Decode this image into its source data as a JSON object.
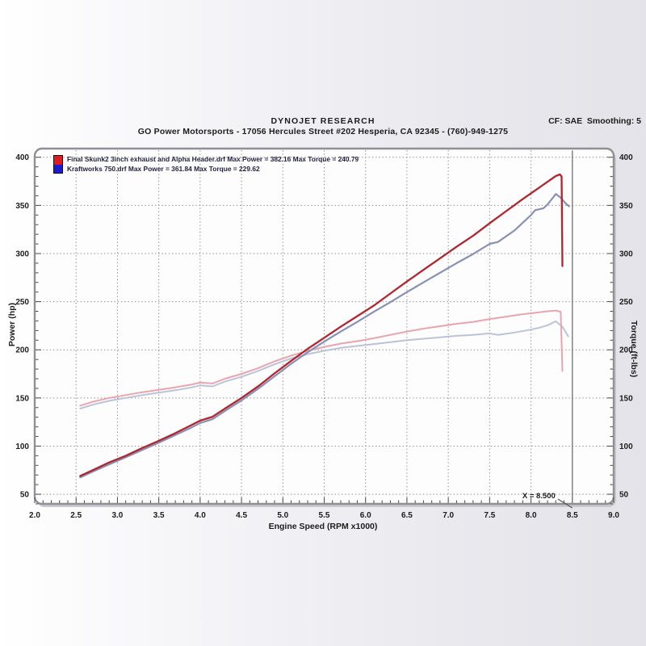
{
  "header": {
    "title": "DYNOJET RESEARCH",
    "subtitle": "GO Power Motorsports - 17056 Hercules Street #202 Hesperia, CA 92345 - (760)-949-1275",
    "cf_label": "CF: SAE  Smoothing: 5"
  },
  "legend": {
    "entries": [
      {
        "label": "Final Skunk2 3inch exhaust and Alpha Header.drf Max Power = 382.16 Max Torque = 240.79",
        "color": "#e01b20"
      },
      {
        "label": "Kraftworks 750.drf Max Power = 361.84 Max Torque = 229.62",
        "color": "#1b1bd0"
      }
    ]
  },
  "chart_data": {
    "type": "line",
    "xlabel": "Engine Speed (RPM x1000)",
    "ylabel_left": "Power (hp)",
    "ylabel_right": "Torque (ft-lbs)",
    "xlim": [
      2.0,
      9.0
    ],
    "ylim": [
      40,
      409
    ],
    "x_major_ticks": [
      2.0,
      2.5,
      3.0,
      3.5,
      4.0,
      4.5,
      5.0,
      5.5,
      6.0,
      6.5,
      7.0,
      7.5,
      8.0,
      8.5,
      9.0
    ],
    "y_major_ticks": [
      50,
      100,
      150,
      200,
      250,
      300,
      350,
      400
    ],
    "x_minor_step": 0.1,
    "y_minor_step": 10,
    "grid": "dotted",
    "legend_position": "top-left",
    "cursor": {
      "x": 8.5,
      "label": "X = 8.500"
    },
    "series": [
      {
        "key": "kraftworks-torque",
        "name": "Kraftworks 750.drf — Torque (ft-lbs)",
        "axis": "torque",
        "color": "#bcc3d8",
        "width": 2,
        "points": [
          [
            2.55,
            139
          ],
          [
            2.7,
            143
          ],
          [
            2.9,
            147
          ],
          [
            3.1,
            150
          ],
          [
            3.3,
            153
          ],
          [
            3.5,
            155.5
          ],
          [
            3.7,
            158
          ],
          [
            3.9,
            161
          ],
          [
            4.0,
            163
          ],
          [
            4.15,
            162
          ],
          [
            4.3,
            167
          ],
          [
            4.5,
            172
          ],
          [
            4.7,
            178
          ],
          [
            4.9,
            185
          ],
          [
            5.1,
            191
          ],
          [
            5.3,
            195.5
          ],
          [
            5.5,
            199
          ],
          [
            5.7,
            202
          ],
          [
            5.9,
            204
          ],
          [
            6.1,
            206
          ],
          [
            6.3,
            208
          ],
          [
            6.5,
            210
          ],
          [
            6.7,
            211.5
          ],
          [
            6.9,
            213
          ],
          [
            7.1,
            214.5
          ],
          [
            7.3,
            215.5
          ],
          [
            7.5,
            217
          ],
          [
            7.6,
            215.5
          ],
          [
            7.8,
            218
          ],
          [
            8.0,
            221
          ],
          [
            8.1,
            223
          ],
          [
            8.2,
            225.5
          ],
          [
            8.3,
            229.6
          ],
          [
            8.38,
            224
          ],
          [
            8.45,
            214
          ]
        ]
      },
      {
        "key": "skunk2-torque",
        "name": "Final Skunk2 3inch exhaust and Alpha Header.drf — Torque (ft-lbs)",
        "axis": "torque",
        "color": "#e8a5ad",
        "width": 2,
        "points": [
          [
            2.55,
            142
          ],
          [
            2.7,
            146
          ],
          [
            2.9,
            150
          ],
          [
            3.1,
            153
          ],
          [
            3.3,
            156
          ],
          [
            3.5,
            158.5
          ],
          [
            3.7,
            161
          ],
          [
            3.9,
            164
          ],
          [
            4.0,
            166
          ],
          [
            4.15,
            165
          ],
          [
            4.3,
            170
          ],
          [
            4.5,
            175
          ],
          [
            4.7,
            181
          ],
          [
            4.9,
            188
          ],
          [
            5.1,
            194
          ],
          [
            5.3,
            199
          ],
          [
            5.5,
            203
          ],
          [
            5.7,
            206.5
          ],
          [
            5.9,
            209
          ],
          [
            6.1,
            212
          ],
          [
            6.3,
            215.5
          ],
          [
            6.5,
            219
          ],
          [
            6.7,
            222
          ],
          [
            6.9,
            224.5
          ],
          [
            7.1,
            227
          ],
          [
            7.3,
            229
          ],
          [
            7.5,
            232
          ],
          [
            7.7,
            234.5
          ],
          [
            7.9,
            237
          ],
          [
            8.1,
            239
          ],
          [
            8.2,
            240
          ],
          [
            8.3,
            240.8
          ],
          [
            8.36,
            239.5
          ],
          [
            8.38,
            178
          ]
        ]
      },
      {
        "key": "kraftworks-power",
        "name": "Kraftworks 750.drf — Power (hp)",
        "axis": "power",
        "color": "#8791b6",
        "width": 2.2,
        "points": [
          [
            2.55,
            67.5
          ],
          [
            2.7,
            73.5
          ],
          [
            2.9,
            81
          ],
          [
            3.1,
            88.5
          ],
          [
            3.3,
            96
          ],
          [
            3.5,
            103.5
          ],
          [
            3.7,
            111.5
          ],
          [
            3.9,
            119.5
          ],
          [
            4.0,
            124
          ],
          [
            4.15,
            128
          ],
          [
            4.3,
            136.5
          ],
          [
            4.5,
            147.5
          ],
          [
            4.7,
            159.5
          ],
          [
            4.9,
            172.5
          ],
          [
            5.1,
            185.5
          ],
          [
            5.3,
            197.5
          ],
          [
            5.5,
            208.5
          ],
          [
            5.7,
            219
          ],
          [
            5.9,
            229
          ],
          [
            6.1,
            239.5
          ],
          [
            6.3,
            249.5
          ],
          [
            6.5,
            260
          ],
          [
            6.7,
            270
          ],
          [
            6.9,
            280
          ],
          [
            7.1,
            290
          ],
          [
            7.3,
            299.5
          ],
          [
            7.5,
            310
          ],
          [
            7.6,
            312
          ],
          [
            7.8,
            324
          ],
          [
            8.0,
            340
          ],
          [
            8.05,
            345
          ],
          [
            8.15,
            347
          ],
          [
            8.2,
            351
          ],
          [
            8.3,
            361.8
          ],
          [
            8.36,
            358
          ],
          [
            8.42,
            352
          ],
          [
            8.46,
            349
          ]
        ]
      },
      {
        "key": "skunk2-power",
        "name": "Final Skunk2 3inch exhaust and Alpha Header.drf — Power (hp)",
        "axis": "power",
        "color": "#b3252d",
        "width": 2.3,
        "points": [
          [
            2.55,
            69
          ],
          [
            2.7,
            75
          ],
          [
            2.9,
            83
          ],
          [
            3.1,
            90
          ],
          [
            3.3,
            98
          ],
          [
            3.5,
            105.5
          ],
          [
            3.7,
            113.5
          ],
          [
            3.9,
            122
          ],
          [
            4.0,
            126.5
          ],
          [
            4.15,
            130.5
          ],
          [
            4.3,
            139
          ],
          [
            4.5,
            150
          ],
          [
            4.7,
            162
          ],
          [
            4.9,
            175.5
          ],
          [
            5.1,
            188.5
          ],
          [
            5.3,
            201
          ],
          [
            5.5,
            212.5
          ],
          [
            5.7,
            224
          ],
          [
            5.9,
            235
          ],
          [
            6.1,
            246
          ],
          [
            6.3,
            258.5
          ],
          [
            6.5,
            271
          ],
          [
            6.7,
            283
          ],
          [
            6.9,
            295
          ],
          [
            7.1,
            307
          ],
          [
            7.3,
            318.5
          ],
          [
            7.5,
            331.5
          ],
          [
            7.7,
            344
          ],
          [
            7.9,
            356.5
          ],
          [
            8.1,
            368.5
          ],
          [
            8.2,
            374.5
          ],
          [
            8.3,
            380.5
          ],
          [
            8.35,
            382.2
          ],
          [
            8.37,
            380
          ],
          [
            8.38,
            287
          ]
        ]
      }
    ]
  }
}
